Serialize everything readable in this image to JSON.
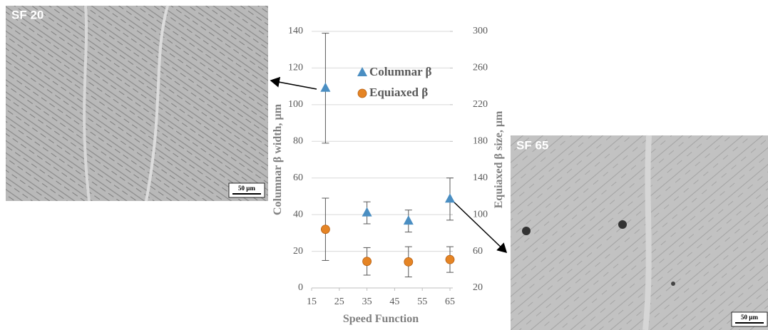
{
  "chart_data": {
    "type": "scatter",
    "xlabel": "Speed Function",
    "ylabel": "Columnar β width, µm",
    "y2label": "Equiaxed β size, µm",
    "xlim": [
      15,
      65
    ],
    "xticks": [
      15,
      25,
      35,
      45,
      55,
      65
    ],
    "ylim": [
      0,
      140
    ],
    "yticks": [
      0,
      20,
      40,
      60,
      80,
      100,
      120,
      140
    ],
    "y2lim": [
      20,
      300
    ],
    "y2ticks": [
      20,
      60,
      100,
      140,
      180,
      220,
      260,
      300
    ],
    "grid": true,
    "series": [
      {
        "name": "Columnar β",
        "color": "#4a8ec2",
        "marker": "triangle",
        "x": [
          20,
          35,
          50,
          65
        ],
        "values": [
          109,
          41,
          36.5,
          48.5
        ],
        "errors": [
          30,
          6,
          6,
          11.5
        ]
      },
      {
        "name": "Equiaxed β",
        "color": "#e58424",
        "marker": "circle",
        "axis": "y2",
        "x": [
          20,
          35,
          50,
          65
        ],
        "values": [
          84,
          49,
          48.5,
          51
        ],
        "errors": [
          34,
          15,
          16.5,
          14
        ]
      }
    ]
  },
  "images": [
    {
      "label": "SF 20",
      "scale_bar": "50 µm"
    },
    {
      "label": "SF 65",
      "scale_bar": "50 µm"
    }
  ]
}
